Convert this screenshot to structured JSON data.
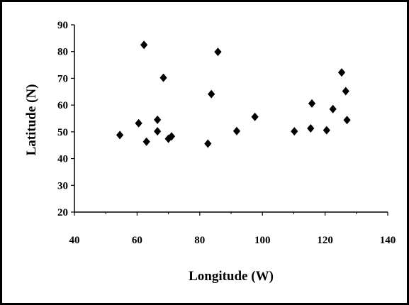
{
  "chart_data": {
    "type": "scatter",
    "title": "",
    "xlabel": "Longitude (W)",
    "ylabel": "Latitude (N)",
    "xlim": [
      40,
      140
    ],
    "ylim": [
      20,
      90
    ],
    "xticks": [
      "40",
      "60",
      "80",
      "100",
      "120",
      "140"
    ],
    "yticks": [
      "20",
      "30",
      "40",
      "50",
      "60",
      "70",
      "80",
      "90"
    ],
    "grid": false,
    "legend": "none",
    "marker": "diamond",
    "marker_color": "#000000",
    "points": [
      {
        "x": 54.5,
        "y": 48.8
      },
      {
        "x": 60.5,
        "y": 53.2
      },
      {
        "x": 62.2,
        "y": 82.5
      },
      {
        "x": 63.0,
        "y": 46.3
      },
      {
        "x": 66.5,
        "y": 54.5
      },
      {
        "x": 66.5,
        "y": 50.2
      },
      {
        "x": 68.4,
        "y": 70.2
      },
      {
        "x": 70.0,
        "y": 47.4
      },
      {
        "x": 71.0,
        "y": 48.3
      },
      {
        "x": 82.6,
        "y": 45.6
      },
      {
        "x": 83.7,
        "y": 64.1
      },
      {
        "x": 85.8,
        "y": 79.9
      },
      {
        "x": 91.8,
        "y": 50.3
      },
      {
        "x": 97.6,
        "y": 55.6
      },
      {
        "x": 110.2,
        "y": 50.2
      },
      {
        "x": 115.4,
        "y": 51.3
      },
      {
        "x": 115.8,
        "y": 60.6
      },
      {
        "x": 120.5,
        "y": 50.6
      },
      {
        "x": 122.5,
        "y": 58.5
      },
      {
        "x": 125.3,
        "y": 72.2
      },
      {
        "x": 126.6,
        "y": 65.2
      },
      {
        "x": 127.0,
        "y": 54.4
      }
    ]
  }
}
